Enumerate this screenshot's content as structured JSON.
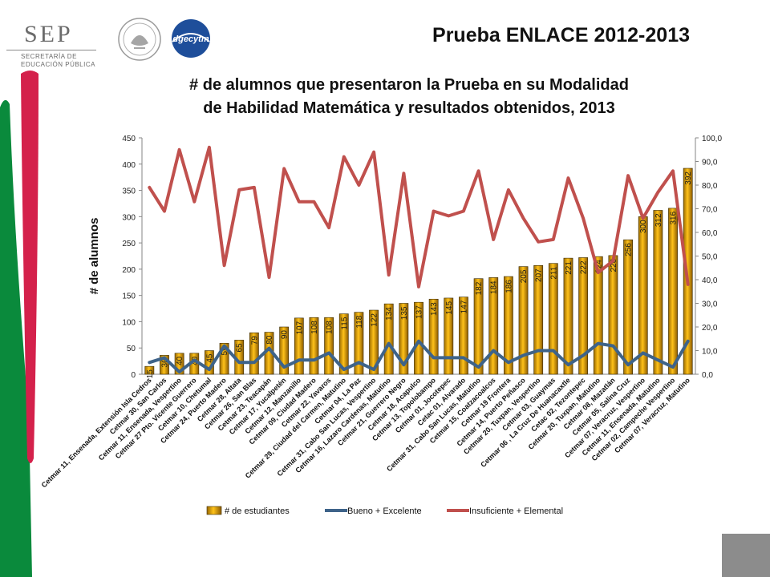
{
  "header": {
    "sep_word": "SEP",
    "sep_line1": "SECRETARÍA DE",
    "sep_line2": "EDUCACIÓN PÚBLICA",
    "dgecytm_logo": "dgecytm",
    "page_title": "Prueba ENLACE 2012-2013"
  },
  "colors": {
    "bar": "#F5A800",
    "bar_edge": "#3a2a00",
    "bueno": "#3E6389",
    "insuficiente": "#C0504D",
    "green_band": "#0A8A3C",
    "red_band": "#D4214B"
  },
  "chart_data": {
    "type": "bar+line",
    "title_line1": "# de alumnos que presentaron la Prueba en su Modalidad",
    "title_line2": "de Habilidad Matemática y resultados obtenidos, 2013",
    "ylabel": "# de alumnos",
    "ylim": [
      0,
      450
    ],
    "y_ticks": [
      "0",
      "50",
      "100",
      "150",
      "200",
      "250",
      "300",
      "350",
      "400",
      "450"
    ],
    "y2lim": [
      0,
      100
    ],
    "y2_ticks": [
      "0,0",
      "10,0",
      "20,0",
      "30,0",
      "40,0",
      "50,0",
      "60,0",
      "70,0",
      "80,0",
      "90,0",
      "100,0"
    ],
    "legend_position": "bottom",
    "categories": [
      "Cetmar 11, Ensenada, Extensión Isla Cedros",
      "Cetmar 30, San Carlos",
      "Cetmar 11, Ensenada, Vespertino",
      "Cetmar 27 Pto. Vicente Guerrero",
      "Cetmar 10, Chetumal",
      "Cetmar 24, Puerto Madero",
      "Cetmar 28, Altata",
      "Cetmar 26, San Blas",
      "Cetmar 23, Teacapán",
      "Cetmar 17, Yucalpetén",
      "Cetmar 12, Manzanillo",
      "Cetmar 09, Ciudad Madero",
      "Cetmar 22, Yavaros",
      "Cetmar 29, Ciudad del Carmen, Matutino",
      "Cetmar 04, La Paz",
      "Cetmar 31, Cabo San Lucas, Vespertino",
      "Cetmar 16, Lazaro Cardenas, Matutino",
      "Cetmar 21, Guerrero Negro",
      "Cetmar 18, Acapulco",
      "Cetmar 13, Topolobampo",
      "Cetmar 01, Jocotepec",
      "Cetac 01, Alvarado",
      "Cetmar 31, Cabo San Lucas, Matutino",
      "Cetmar 15, Coatzacoalcos",
      "Cetmar 19 Frontera",
      "Cetmar 14, Puerto Peñasco",
      "Cetmar 20, Tuxpan, Vespertino",
      "Cetmar 03, Guaymas",
      "Cetmar 06 , La Cruz De Huanacaxtle",
      "Cetac 02, Tezontepec",
      "Cetmar 20, Tuxpan, Matutino",
      "Cetmar 08, Mazatlán",
      "Cetmar 05, Salina Cruz",
      "Cetmar 07, Veracruz, Vespertino",
      "Cetmar 11, Ensenada, Matutino",
      "Cetmar 02, Campeche Vespertino",
      "Cetmar 07, Veracruz, Matutino"
    ],
    "series": [
      {
        "name": "# de estudiantes",
        "type": "bar",
        "axis": "left",
        "values": [
          15,
          36,
          40,
          40,
          45,
          59,
          65,
          79,
          80,
          90,
          107,
          108,
          108,
          115,
          118,
          122,
          134,
          135,
          137,
          143,
          145,
          147,
          182,
          184,
          186,
          205,
          207,
          211,
          221,
          222,
          224,
          226,
          256,
          300,
          312,
          316,
          392
        ],
        "labels": [
          "15",
          "36",
          "40",
          "40",
          "45",
          "59",
          "65",
          "79",
          "80",
          "90",
          "107",
          "108",
          "108",
          "115",
          "118",
          "122",
          "134",
          "135",
          "137",
          "143",
          "145",
          "147",
          "182",
          "184",
          "186",
          "205",
          "207",
          "211",
          "221",
          "222",
          "224",
          "226",
          "256",
          "300",
          "312",
          "316",
          "392"
        ]
      },
      {
        "name": "Bueno + Excelente",
        "type": "line",
        "axis": "right",
        "values": [
          5,
          7,
          1,
          6,
          2,
          12,
          5,
          5,
          11,
          3,
          6,
          6,
          9,
          2,
          5,
          2,
          13,
          4,
          14,
          7,
          7,
          7,
          3,
          10,
          5,
          8,
          10,
          10,
          4,
          8,
          13,
          12,
          4,
          9,
          6,
          3,
          14
        ]
      },
      {
        "name": "Insuficiente + Elemental",
        "type": "line",
        "axis": "right",
        "values": [
          79,
          69,
          95,
          73,
          96,
          46,
          78,
          79,
          41,
          87,
          73,
          73,
          62,
          92,
          80,
          94,
          42,
          85,
          37,
          69,
          67,
          69,
          86,
          57,
          78,
          66,
          56,
          57,
          83,
          66,
          43,
          48,
          84,
          66,
          77,
          86,
          38
        ]
      }
    ]
  }
}
